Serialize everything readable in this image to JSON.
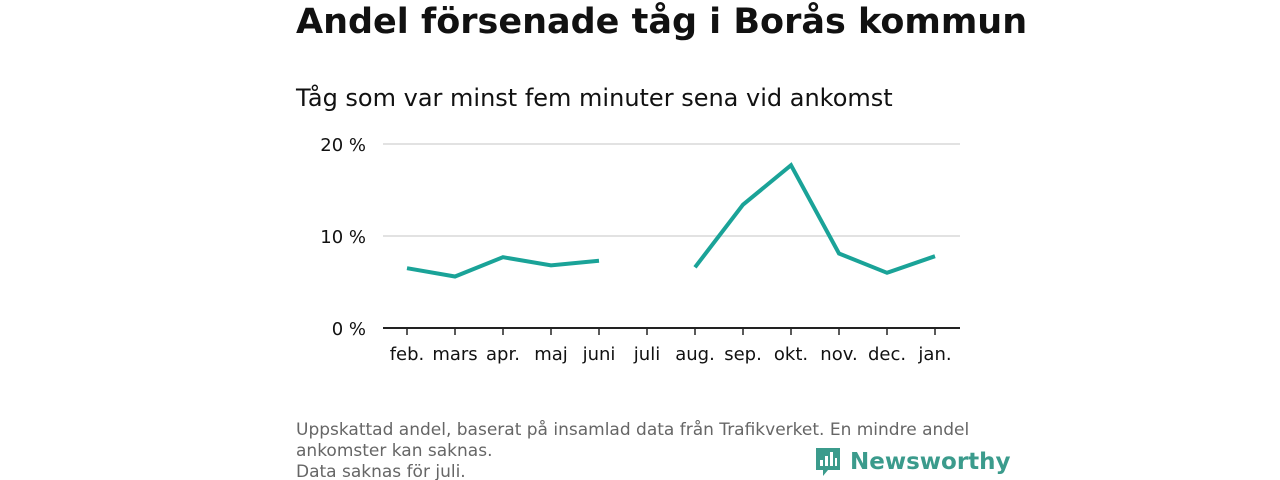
{
  "title": "Andel försenade tåg i Borås kommun",
  "subtitle": "Tåg som var minst fem minuter sena vid ankomst",
  "notes": {
    "line1": "Uppskattad andel, baserat på insamlad data från Trafikverket. En mindre andel",
    "line1b": "ankomster kan saknas.",
    "line2": "Data saknas för juli."
  },
  "brand": {
    "name": "Newsworthy",
    "icon": "newsworthy-logo-icon",
    "color": "#3b9b8c"
  },
  "chart_data": {
    "type": "line",
    "categories": [
      "feb.",
      "mars",
      "apr.",
      "maj",
      "juni",
      "juli",
      "aug.",
      "sep.",
      "okt.",
      "nov.",
      "dec.",
      "jan."
    ],
    "series": [
      {
        "values": [
          6.5,
          5.6,
          7.7,
          6.8,
          7.3,
          null,
          6.6,
          13.4,
          17.7,
          8.1,
          6.0,
          7.8
        ],
        "color": "#1aa398"
      }
    ],
    "ylim": [
      0,
      20
    ],
    "yticks": [
      {
        "value": 0,
        "label": "0 %"
      },
      {
        "value": 10,
        "label": "10 %"
      },
      {
        "value": 20,
        "label": "20 %"
      }
    ],
    "grid": true,
    "legend": "none",
    "xlabel": "",
    "ylabel": ""
  }
}
